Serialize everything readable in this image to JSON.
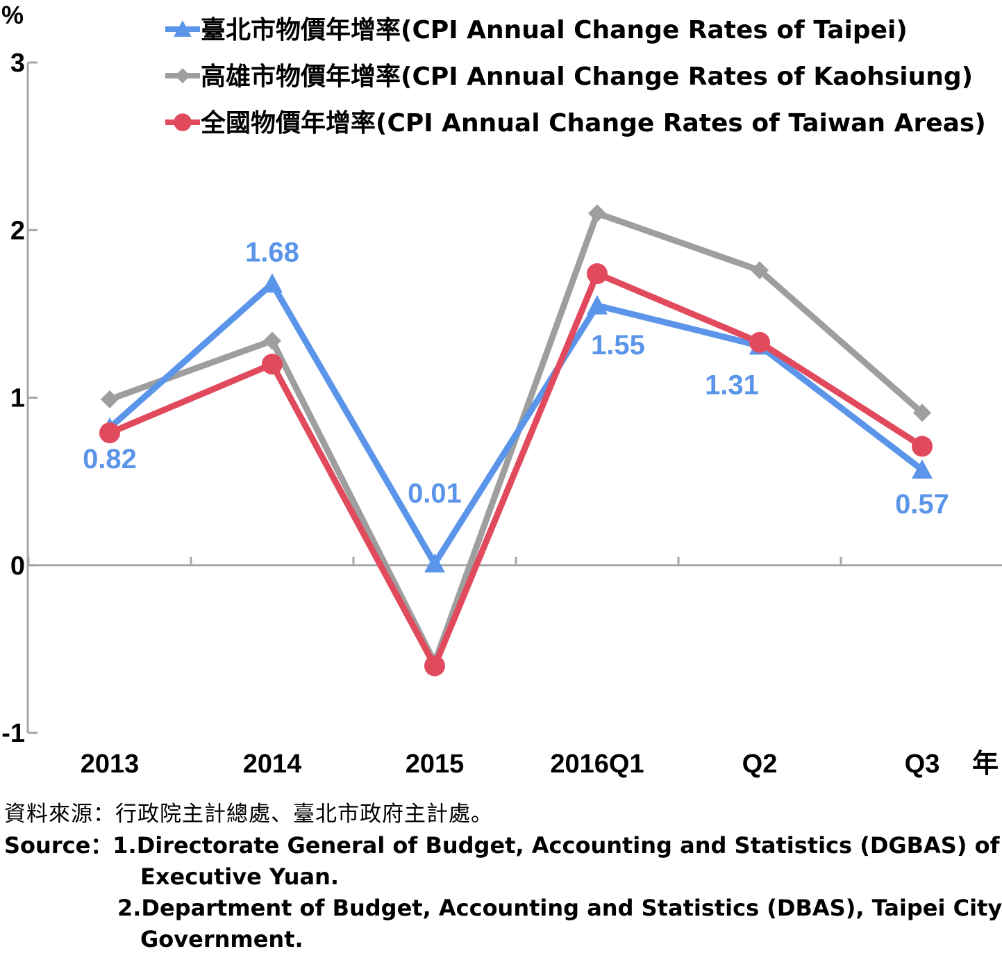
{
  "chart_data": {
    "type": "line",
    "categories": [
      "2013",
      "2014",
      "2015",
      "2016Q1",
      "Q2",
      "Q3"
    ],
    "y_unit": "%",
    "x_unit": "年",
    "ylim": [
      -1,
      3
    ],
    "yticks": [
      "-1",
      "0",
      "1",
      "2",
      "3"
    ],
    "legend_position": "top-right",
    "series": [
      {
        "name": "臺北市物價年增率(CPI Annual Change Rates of Taipei)",
        "color": "#5b95ea",
        "marker": "triangle",
        "values": [
          0.82,
          1.68,
          0.01,
          1.55,
          1.31,
          0.57
        ],
        "data_labels": [
          "0.82",
          "1.68",
          "0.01",
          "1.55",
          "1.31",
          "0.57"
        ]
      },
      {
        "name": "高雄市物價年增率(CPI Annual Change Rates of Kaohsiung)",
        "color": "#9e9e9e",
        "marker": "diamond",
        "values": [
          0.99,
          1.34,
          -0.58,
          2.1,
          1.76,
          0.91
        ]
      },
      {
        "name": "全國物價年增率(CPI Annual Change Rates of Taiwan Areas)",
        "color": "#e04a5c",
        "marker": "circle",
        "values": [
          0.79,
          1.2,
          -0.6,
          1.74,
          1.33,
          0.71
        ]
      }
    ]
  },
  "source": {
    "zh": "資料來源：行政院主計總處、臺北市政府主計處。",
    "en_prefix": "Source：",
    "en_1a": "1.Directorate General of Budget, Accounting and Statistics (DGBAS) of",
    "en_1b": "Executive Yuan.",
    "en_2a": "2.Department of Budget, Accounting and Statistics (DBAS), Taipei City",
    "en_2b": "Government."
  }
}
